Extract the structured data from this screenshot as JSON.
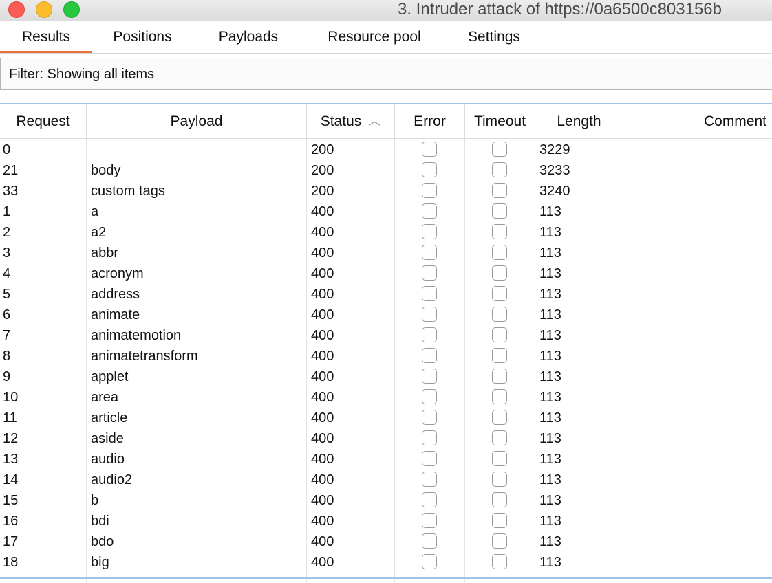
{
  "window": {
    "title": "3. Intruder attack of https://0a6500c803156b"
  },
  "tabs": [
    {
      "label": "Results",
      "active": true
    },
    {
      "label": "Positions",
      "active": false
    },
    {
      "label": "Payloads",
      "active": false
    },
    {
      "label": "Resource pool",
      "active": false
    },
    {
      "label": "Settings",
      "active": false
    }
  ],
  "filter": {
    "text": "Filter: Showing all items"
  },
  "table": {
    "columns": [
      "Request",
      "Payload",
      "Status",
      "Error",
      "Timeout",
      "Length",
      "Comment"
    ],
    "sort_column": "Status",
    "sort_direction": "ascending",
    "rows": [
      {
        "request": "0",
        "payload": "",
        "status": "200",
        "length": "3229"
      },
      {
        "request": "21",
        "payload": "body",
        "status": "200",
        "length": "3233"
      },
      {
        "request": "33",
        "payload": "custom tags",
        "status": "200",
        "length": "3240"
      },
      {
        "request": "1",
        "payload": "a",
        "status": "400",
        "length": "113"
      },
      {
        "request": "2",
        "payload": "a2",
        "status": "400",
        "length": "113"
      },
      {
        "request": "3",
        "payload": "abbr",
        "status": "400",
        "length": "113"
      },
      {
        "request": "4",
        "payload": "acronym",
        "status": "400",
        "length": "113"
      },
      {
        "request": "5",
        "payload": "address",
        "status": "400",
        "length": "113"
      },
      {
        "request": "6",
        "payload": "animate",
        "status": "400",
        "length": "113"
      },
      {
        "request": "7",
        "payload": "animatemotion",
        "status": "400",
        "length": "113"
      },
      {
        "request": "8",
        "payload": "animatetransform",
        "status": "400",
        "length": "113"
      },
      {
        "request": "9",
        "payload": "applet",
        "status": "400",
        "length": "113"
      },
      {
        "request": "10",
        "payload": "area",
        "status": "400",
        "length": "113"
      },
      {
        "request": "11",
        "payload": "article",
        "status": "400",
        "length": "113"
      },
      {
        "request": "12",
        "payload": "aside",
        "status": "400",
        "length": "113"
      },
      {
        "request": "13",
        "payload": "audio",
        "status": "400",
        "length": "113"
      },
      {
        "request": "14",
        "payload": "audio2",
        "status": "400",
        "length": "113"
      },
      {
        "request": "15",
        "payload": "b",
        "status": "400",
        "length": "113"
      },
      {
        "request": "16",
        "payload": "bdi",
        "status": "400",
        "length": "113"
      },
      {
        "request": "17",
        "payload": "bdo",
        "status": "400",
        "length": "113"
      },
      {
        "request": "18",
        "payload": "big",
        "status": "400",
        "length": "113"
      }
    ]
  },
  "colors": {
    "active_tab_underline": "#ea6f3f",
    "table_border_accent": "#9ec3e6"
  },
  "icons": {
    "sort": "chevron-up-icon"
  }
}
